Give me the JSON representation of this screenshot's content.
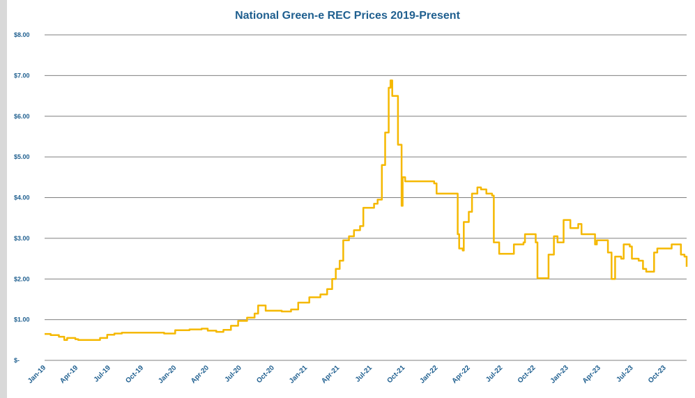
{
  "chart_data": {
    "type": "line",
    "title": "National Green-e REC Prices 2019-Present",
    "xlabel": "",
    "ylabel": "",
    "ylim": [
      0,
      8
    ],
    "yticks": [
      {
        "value": 0,
        "label": "$-"
      },
      {
        "value": 1,
        "label": "$1.00"
      },
      {
        "value": 2,
        "label": "$2.00"
      },
      {
        "value": 3,
        "label": "$3.00"
      },
      {
        "value": 4,
        "label": "$4.00"
      },
      {
        "value": 5,
        "label": "$5.00"
      },
      {
        "value": 6,
        "label": "$6.00"
      },
      {
        "value": 7,
        "label": "$7.00"
      },
      {
        "value": 8,
        "label": "$8.00"
      }
    ],
    "xrange": [
      "2019-01",
      "2023-12"
    ],
    "xticks": [
      {
        "date": "2019-01",
        "label": "Jan-19"
      },
      {
        "date": "2019-04",
        "label": "Apr-19"
      },
      {
        "date": "2019-07",
        "label": "Jul-19"
      },
      {
        "date": "2019-10",
        "label": "Oct-19"
      },
      {
        "date": "2020-01",
        "label": "Jan-20"
      },
      {
        "date": "2020-04",
        "label": "Apr-20"
      },
      {
        "date": "2020-07",
        "label": "Jul-20"
      },
      {
        "date": "2020-10",
        "label": "Oct-20"
      },
      {
        "date": "2021-01",
        "label": "Jan-21"
      },
      {
        "date": "2021-04",
        "label": "Apr-21"
      },
      {
        "date": "2021-07",
        "label": "Jul-21"
      },
      {
        "date": "2021-10",
        "label": "Oct-21"
      },
      {
        "date": "2022-01",
        "label": "Jan-22"
      },
      {
        "date": "2022-04",
        "label": "Apr-22"
      },
      {
        "date": "2022-07",
        "label": "Jul-22"
      },
      {
        "date": "2022-10",
        "label": "Oct-22"
      },
      {
        "date": "2023-01",
        "label": "Jan-23"
      },
      {
        "date": "2023-04",
        "label": "Apr-23"
      },
      {
        "date": "2023-07",
        "label": "Jul-23"
      },
      {
        "date": "2023-10",
        "label": "Oct-23"
      }
    ],
    "grid": true,
    "line_color": "#f5b800",
    "grid_color": "#7f7f7f",
    "text_color": "#1f5f8f",
    "series": [
      {
        "points": [
          [
            "2019-01-01",
            0.65
          ],
          [
            "2019-01-18",
            0.62
          ],
          [
            "2019-02-10",
            0.58
          ],
          [
            "2019-02-25",
            0.5
          ],
          [
            "2019-03-05",
            0.55
          ],
          [
            "2019-03-28",
            0.52
          ],
          [
            "2019-04-05",
            0.5
          ],
          [
            "2019-05-20",
            0.5
          ],
          [
            "2019-06-05",
            0.55
          ],
          [
            "2019-06-25",
            0.63
          ],
          [
            "2019-07-15",
            0.66
          ],
          [
            "2019-08-05",
            0.68
          ],
          [
            "2019-10-01",
            0.68
          ],
          [
            "2019-11-15",
            0.68
          ],
          [
            "2019-12-01",
            0.66
          ],
          [
            "2020-01-01",
            0.74
          ],
          [
            "2020-02-10",
            0.76
          ],
          [
            "2020-03-15",
            0.78
          ],
          [
            "2020-04-01",
            0.73
          ],
          [
            "2020-04-25",
            0.7
          ],
          [
            "2020-05-15",
            0.75
          ],
          [
            "2020-06-05",
            0.85
          ],
          [
            "2020-06-25",
            0.97
          ],
          [
            "2020-07-20",
            1.05
          ],
          [
            "2020-08-10",
            1.15
          ],
          [
            "2020-08-20",
            1.35
          ],
          [
            "2020-09-10",
            1.22
          ],
          [
            "2020-10-25",
            1.2
          ],
          [
            "2020-11-20",
            1.25
          ],
          [
            "2020-12-10",
            1.42
          ],
          [
            "2021-01-10",
            1.55
          ],
          [
            "2021-02-10",
            1.62
          ],
          [
            "2021-03-01",
            1.75
          ],
          [
            "2021-03-15",
            2.0
          ],
          [
            "2021-03-25",
            2.25
          ],
          [
            "2021-04-05",
            2.45
          ],
          [
            "2021-04-15",
            2.95
          ],
          [
            "2021-05-01",
            3.05
          ],
          [
            "2021-05-15",
            3.2
          ],
          [
            "2021-06-01",
            3.3
          ],
          [
            "2021-06-10",
            3.75
          ],
          [
            "2021-07-10",
            3.85
          ],
          [
            "2021-07-20",
            3.95
          ],
          [
            "2021-08-01",
            4.8
          ],
          [
            "2021-08-10",
            5.6
          ],
          [
            "2021-08-20",
            6.7
          ],
          [
            "2021-08-25",
            6.88
          ],
          [
            "2021-08-30",
            6.5
          ],
          [
            "2021-09-10",
            6.5
          ],
          [
            "2021-09-15",
            5.3
          ],
          [
            "2021-09-25",
            3.8
          ],
          [
            "2021-09-28",
            4.5
          ],
          [
            "2021-10-05",
            4.4
          ],
          [
            "2021-12-20",
            4.4
          ],
          [
            "2021-12-25",
            4.35
          ],
          [
            "2022-01-01",
            4.1
          ],
          [
            "2022-02-25",
            4.1
          ],
          [
            "2022-03-01",
            3.1
          ],
          [
            "2022-03-05",
            2.75
          ],
          [
            "2022-03-15",
            2.7
          ],
          [
            "2022-03-18",
            3.4
          ],
          [
            "2022-04-01",
            3.65
          ],
          [
            "2022-04-10",
            4.1
          ],
          [
            "2022-04-25",
            4.25
          ],
          [
            "2022-05-05",
            4.2
          ],
          [
            "2022-05-20",
            4.1
          ],
          [
            "2022-06-05",
            4.05
          ],
          [
            "2022-06-10",
            2.9
          ],
          [
            "2022-06-25",
            2.62
          ],
          [
            "2022-07-15",
            2.62
          ],
          [
            "2022-08-05",
            2.85
          ],
          [
            "2022-09-01",
            2.9
          ],
          [
            "2022-09-05",
            3.1
          ],
          [
            "2022-09-25",
            3.1
          ],
          [
            "2022-10-05",
            2.9
          ],
          [
            "2022-10-10",
            2.02
          ],
          [
            "2022-11-01",
            2.02
          ],
          [
            "2022-11-10",
            2.6
          ],
          [
            "2022-11-25",
            3.05
          ],
          [
            "2022-12-05",
            2.9
          ],
          [
            "2022-12-15",
            2.9
          ],
          [
            "2022-12-22",
            3.45
          ],
          [
            "2023-01-10",
            3.25
          ],
          [
            "2023-02-01",
            3.35
          ],
          [
            "2023-02-10",
            3.1
          ],
          [
            "2023-03-15",
            3.1
          ],
          [
            "2023-03-20",
            2.85
          ],
          [
            "2023-03-25",
            2.95
          ],
          [
            "2023-04-20",
            2.95
          ],
          [
            "2023-04-25",
            2.65
          ],
          [
            "2023-05-05",
            2.0
          ],
          [
            "2023-05-15",
            2.55
          ],
          [
            "2023-06-01",
            2.5
          ],
          [
            "2023-06-08",
            2.85
          ],
          [
            "2023-06-25",
            2.8
          ],
          [
            "2023-07-01",
            2.5
          ],
          [
            "2023-07-20",
            2.45
          ],
          [
            "2023-08-01",
            2.25
          ],
          [
            "2023-08-10",
            2.18
          ],
          [
            "2023-08-30",
            2.18
          ],
          [
            "2023-09-01",
            2.65
          ],
          [
            "2023-09-10",
            2.75
          ],
          [
            "2023-10-15",
            2.75
          ],
          [
            "2023-10-20",
            2.85
          ],
          [
            "2023-11-10",
            2.85
          ],
          [
            "2023-11-15",
            2.6
          ],
          [
            "2023-11-25",
            2.55
          ],
          [
            "2023-12-01",
            2.3
          ]
        ]
      }
    ]
  }
}
